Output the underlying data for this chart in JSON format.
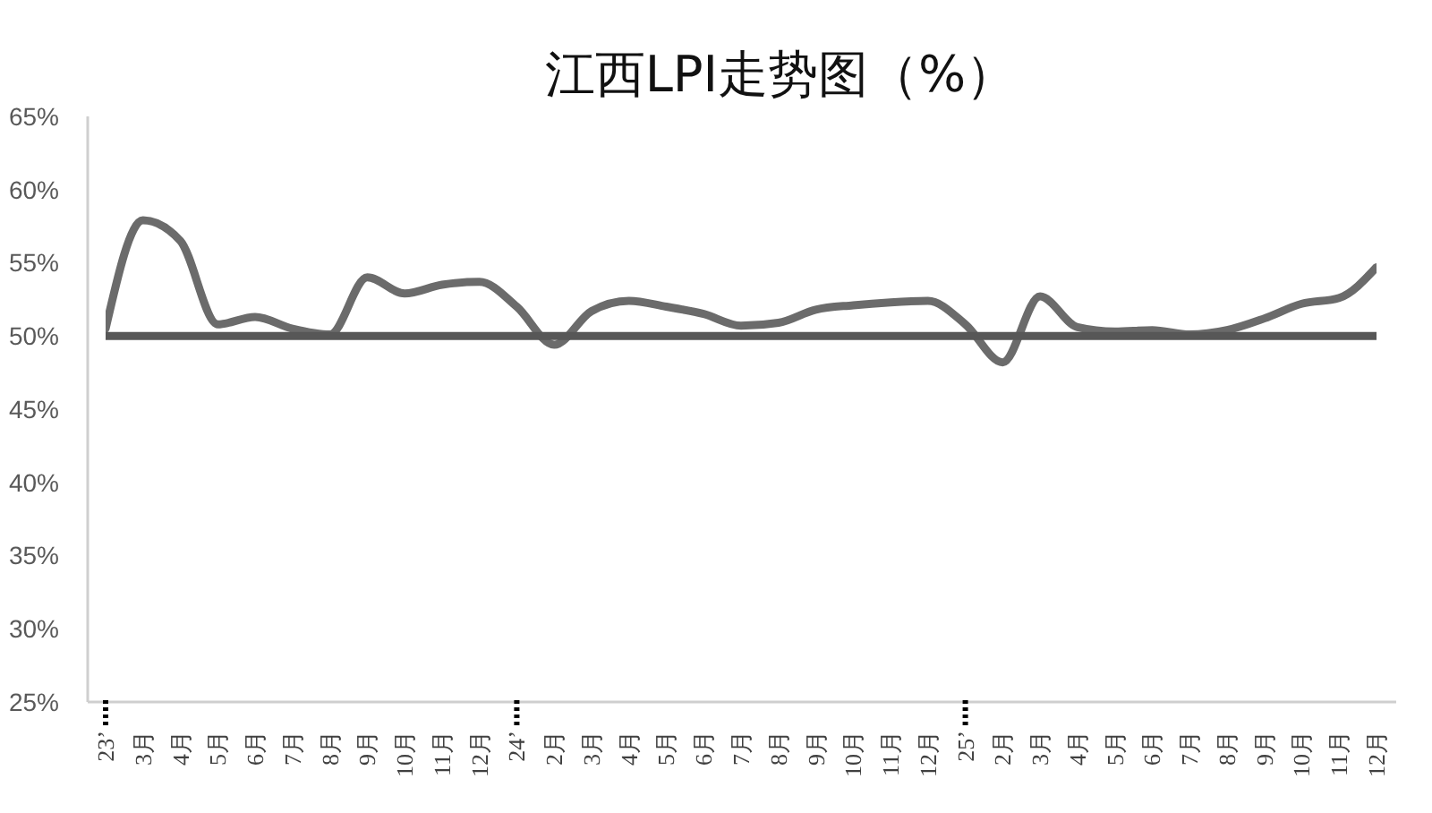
{
  "chart_data": {
    "type": "line",
    "title": "江西LPI走势图（%）",
    "categories": [
      "23’",
      "3月",
      "4月",
      "5月",
      "6月",
      "7月",
      "8月",
      "9月",
      "10月",
      "11月",
      "12月",
      "24’",
      "2月",
      "3月",
      "4月",
      "5月",
      "6月",
      "7月",
      "8月",
      "9月",
      "10月",
      "11月",
      "12月",
      "25’",
      "2月",
      "3月",
      "4月",
      "5月",
      "6月",
      "7月",
      "8月",
      "9月",
      "10月",
      "11月",
      "12月"
    ],
    "values": [
      50.5,
      57.9,
      56.5,
      50.8,
      51.3,
      50.5,
      50.1,
      54.0,
      52.9,
      53.5,
      53.7,
      52.0,
      49.4,
      51.7,
      52.4,
      52.0,
      51.5,
      50.7,
      50.9,
      51.8,
      52.1,
      52.3,
      52.4,
      50.8,
      48.2,
      52.7,
      50.6,
      50.3,
      50.4,
      50.1,
      50.4,
      51.2,
      52.2,
      52.6,
      54.7
    ],
    "color": "#6b6b6b",
    "marker": "none",
    "line_style": "solid",
    "grid": false,
    "ylim": [
      25,
      65
    ],
    "yticks": [
      {
        "value": 25,
        "label": "25%"
      },
      {
        "value": 30,
        "label": "30%"
      },
      {
        "value": 35,
        "label": "35%"
      },
      {
        "value": 40,
        "label": "40%"
      },
      {
        "value": 45,
        "label": "45%"
      },
      {
        "value": 50,
        "label": "50%"
      },
      {
        "value": 55,
        "label": "55%"
      },
      {
        "value": 60,
        "label": "60%"
      },
      {
        "value": 65,
        "label": "65%"
      }
    ],
    "ref_lines": [
      {
        "axis": "y",
        "value": 50,
        "color": "#575757"
      }
    ]
  }
}
